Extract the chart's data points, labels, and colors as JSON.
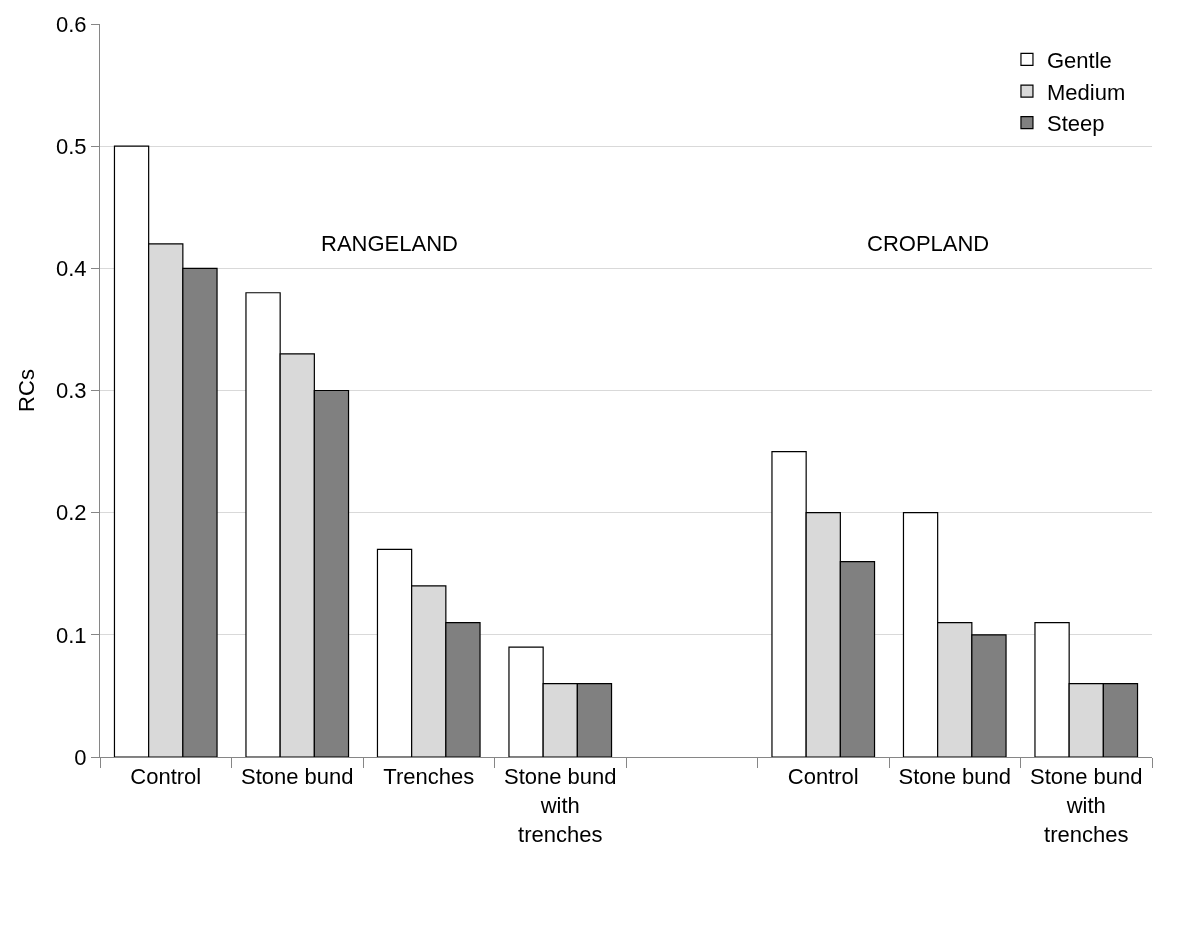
{
  "chart_data": {
    "type": "bar",
    "ylabel": "RCs",
    "categories": [
      "Control",
      "Stone bund",
      "Trenches",
      "Stone bund with trenches",
      null,
      "Control",
      "Stone bund",
      "Stone bund with trenches"
    ],
    "series": [
      {
        "name": "Gentle",
        "color": "#ffffff",
        "values": [
          0.5,
          0.38,
          0.17,
          0.09,
          null,
          0.25,
          0.2,
          0.11
        ]
      },
      {
        "name": "Medium",
        "color": "#d9d9d9",
        "values": [
          0.42,
          0.33,
          0.14,
          0.06,
          null,
          0.2,
          0.11,
          0.06
        ]
      },
      {
        "name": "Steep",
        "color": "#808080",
        "values": [
          0.4,
          0.3,
          0.11,
          0.06,
          null,
          0.16,
          0.1,
          0.06
        ]
      }
    ],
    "annotations": [
      "RANGELAND",
      "CROPLAND"
    ],
    "ylim": [
      0,
      0.6
    ],
    "yticks": [
      0,
      0.1,
      0.2,
      0.3,
      0.4,
      0.5,
      0.6
    ],
    "grid": "y",
    "legend": "top right"
  }
}
